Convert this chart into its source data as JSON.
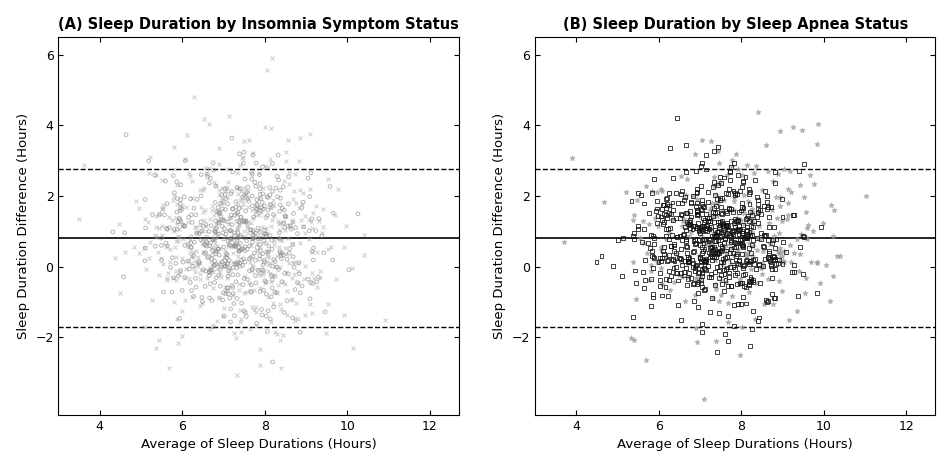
{
  "title_A": "(A) Sleep Duration by Insomnia Symptom Status",
  "title_B": "(B) Sleep Duration by Sleep Apnea Status",
  "xlabel": "Average of Sleep Durations (Hours)",
  "ylabel": "Sleep Duration Difference (Hours)",
  "mean_line": 0.8,
  "upper_loa": 2.75,
  "lower_loa": -1.7,
  "xlim": [
    3.0,
    12.7
  ],
  "ylim": [
    -4.2,
    6.5
  ],
  "xticks": [
    4,
    6,
    8,
    10,
    12
  ],
  "yticks": [
    -2,
    0,
    2,
    4,
    6
  ],
  "color_circles": "#888888",
  "color_crosses": "#aaaaaa",
  "color_squares": "#111111",
  "color_stars": "#999999",
  "n_circles": 480,
  "n_crosses": 480,
  "n_squares": 650,
  "n_stars": 280,
  "seed": 7,
  "figsize": [
    9.52,
    4.68
  ],
  "dpi": 100,
  "marker_size_o": 7,
  "marker_size_x": 8,
  "marker_size_sq": 8,
  "marker_size_star": 14,
  "lw_marker": 0.7,
  "alpha_A1": 0.6,
  "alpha_A2": 0.6,
  "alpha_B1": 0.8,
  "alpha_B2": 0.65
}
